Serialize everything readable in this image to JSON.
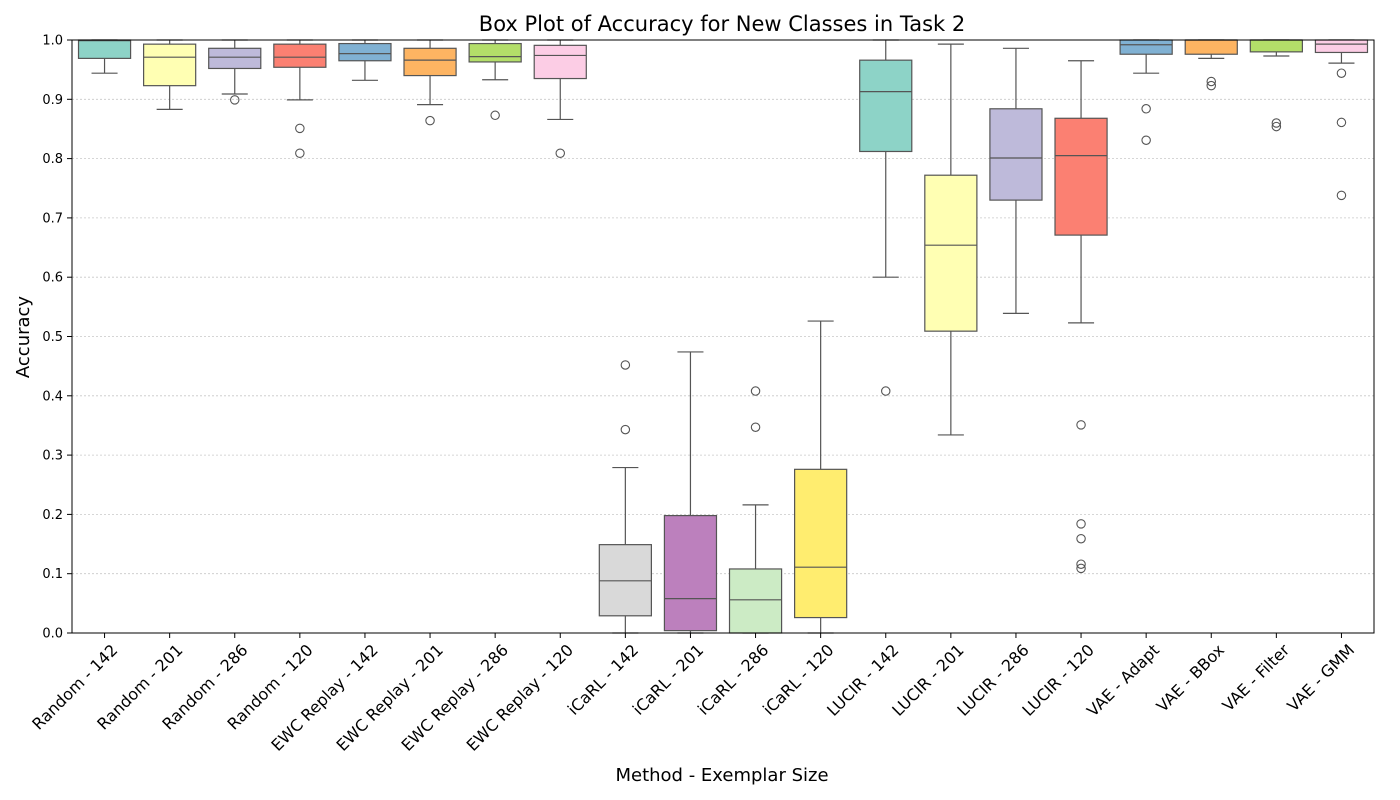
{
  "chart_data": {
    "type": "box",
    "title": "Box Plot of Accuracy for New Classes in Task 2",
    "xlabel": "Method - Exemplar Size",
    "ylabel": "Accuracy",
    "ylim": [
      0.0,
      1.0
    ],
    "yticks": [
      "0.0",
      "0.1",
      "0.2",
      "0.3",
      "0.4",
      "0.5",
      "0.6",
      "0.7",
      "0.8",
      "0.9",
      "1.0"
    ],
    "grid": "horizontal dotted",
    "categories": [
      "Random - 142",
      "Random - 201",
      "Random - 286",
      "Random - 120",
      "EWC Replay - 142",
      "EWC Replay - 201",
      "EWC Replay - 286",
      "EWC Replay - 120",
      "iCaRL - 142",
      "iCaRL - 201",
      "iCaRL - 286",
      "iCaRL - 120",
      "LUCIR - 142",
      "LUCIR - 201",
      "LUCIR - 286",
      "LUCIR - 120",
      "VAE - Adapt",
      "VAE - BBox",
      "VAE - Filter",
      "VAE - GMM"
    ],
    "colors": [
      "#8dd3c7",
      "#ffffb3",
      "#bebada",
      "#fb8072",
      "#80b1d3",
      "#fdb462",
      "#b3de69",
      "#fccde5",
      "#d9d9d9",
      "#bc80bd",
      "#ccebc5",
      "#ffed6f",
      "#8dd3c7",
      "#ffffb3",
      "#bebada",
      "#fb8072",
      "#80b1d3",
      "#fdb462",
      "#b3de69",
      "#fccde5"
    ],
    "boxes": [
      {
        "whislo": 0.944,
        "q1": 0.969,
        "med": 0.999,
        "q3": 1.0,
        "whishi": 1.0,
        "fliers": []
      },
      {
        "whislo": 0.883,
        "q1": 0.923,
        "med": 0.971,
        "q3": 0.993,
        "whishi": 1.0,
        "fliers": []
      },
      {
        "whislo": 0.909,
        "q1": 0.952,
        "med": 0.971,
        "q3": 0.986,
        "whishi": 1.0,
        "fliers": [
          0.899
        ]
      },
      {
        "whislo": 0.899,
        "q1": 0.954,
        "med": 0.971,
        "q3": 0.993,
        "whishi": 1.0,
        "fliers": [
          0.851,
          0.809
        ]
      },
      {
        "whislo": 0.932,
        "q1": 0.965,
        "med": 0.977,
        "q3": 0.994,
        "whishi": 1.0,
        "fliers": []
      },
      {
        "whislo": 0.891,
        "q1": 0.94,
        "med": 0.966,
        "q3": 0.986,
        "whishi": 1.0,
        "fliers": [
          0.864
        ]
      },
      {
        "whislo": 0.933,
        "q1": 0.963,
        "med": 0.972,
        "q3": 0.994,
        "whishi": 1.0,
        "fliers": [
          0.873
        ]
      },
      {
        "whislo": 0.866,
        "q1": 0.935,
        "med": 0.974,
        "q3": 0.991,
        "whishi": 1.0,
        "fliers": [
          0.809
        ]
      },
      {
        "whislo": 0.0,
        "q1": 0.029,
        "med": 0.088,
        "q3": 0.149,
        "whishi": 0.279,
        "fliers": [
          0.452,
          0.343
        ]
      },
      {
        "whislo": 0.0,
        "q1": 0.004,
        "med": 0.058,
        "q3": 0.198,
        "whishi": 0.474,
        "fliers": []
      },
      {
        "whislo": 0.0,
        "q1": 0.0,
        "med": 0.056,
        "q3": 0.108,
        "whishi": 0.216,
        "fliers": [
          0.408,
          0.347
        ]
      },
      {
        "whislo": 0.0,
        "q1": 0.026,
        "med": 0.111,
        "q3": 0.276,
        "whishi": 0.526,
        "fliers": []
      },
      {
        "whislo": 0.6,
        "q1": 0.812,
        "med": 0.913,
        "q3": 0.966,
        "whishi": 1.0,
        "fliers": [
          0.408
        ]
      },
      {
        "whislo": 0.334,
        "q1": 0.509,
        "med": 0.654,
        "q3": 0.772,
        "whishi": 0.993,
        "fliers": []
      },
      {
        "whislo": 0.539,
        "q1": 0.73,
        "med": 0.801,
        "q3": 0.884,
        "whishi": 0.986,
        "fliers": []
      },
      {
        "whislo": 0.523,
        "q1": 0.671,
        "med": 0.805,
        "q3": 0.868,
        "whishi": 0.965,
        "fliers": [
          0.351,
          0.184,
          0.159,
          0.116,
          0.109
        ]
      },
      {
        "whislo": 0.944,
        "q1": 0.976,
        "med": 0.992,
        "q3": 1.0,
        "whishi": 1.0,
        "fliers": [
          0.884,
          0.831
        ]
      },
      {
        "whislo": 0.969,
        "q1": 0.976,
        "med": 1.0,
        "q3": 1.0,
        "whishi": 1.0,
        "fliers": [
          0.93,
          0.923
        ]
      },
      {
        "whislo": 0.973,
        "q1": 0.98,
        "med": 1.0,
        "q3": 1.0,
        "whishi": 1.0,
        "fliers": [
          0.86,
          0.854
        ]
      },
      {
        "whislo": 0.961,
        "q1": 0.979,
        "med": 0.993,
        "q3": 1.0,
        "whishi": 1.0,
        "fliers": [
          0.944,
          0.861,
          0.738
        ]
      }
    ]
  }
}
